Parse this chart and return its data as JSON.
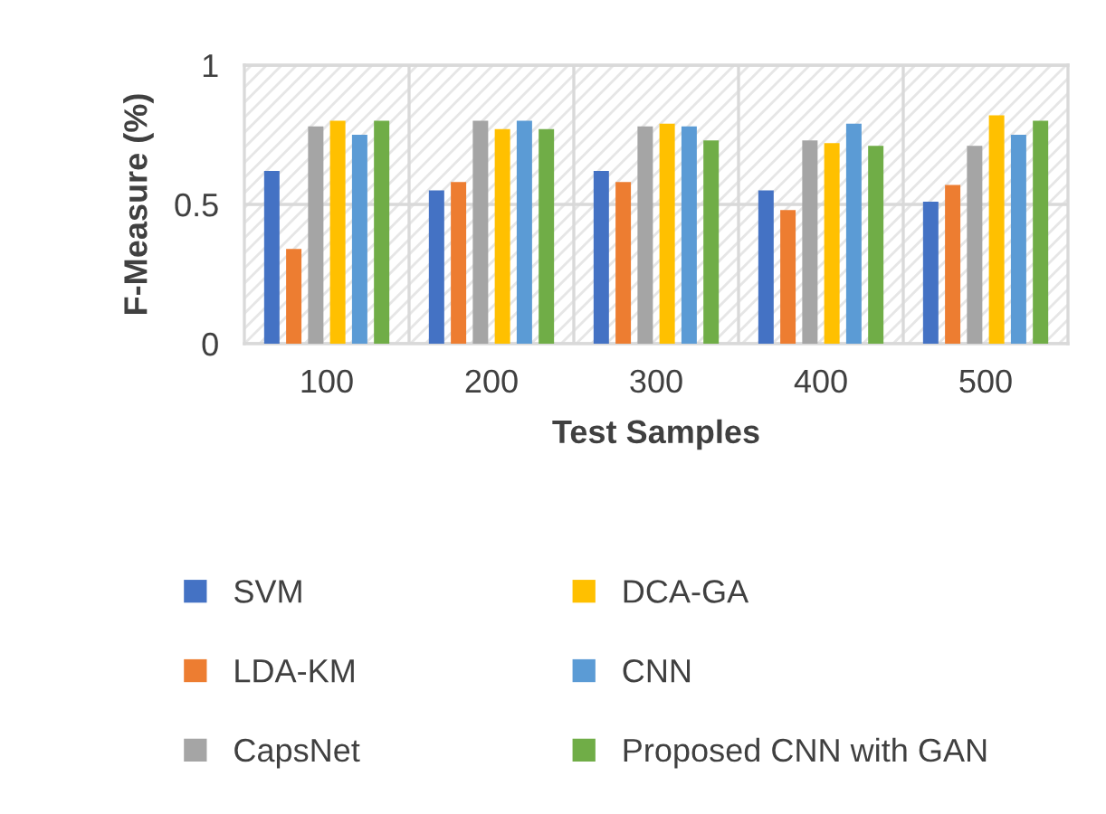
{
  "chart_data": {
    "type": "bar",
    "xlabel": "Test Samples",
    "ylabel": "F-Measure (%)",
    "categories": [
      "100",
      "200",
      "300",
      "400",
      "500"
    ],
    "series": [
      {
        "name": "SVM",
        "color": "#4472c4",
        "values": [
          0.62,
          0.55,
          0.62,
          0.55,
          0.51
        ]
      },
      {
        "name": "LDA-KM",
        "color": "#ed7d31",
        "values": [
          0.34,
          0.58,
          0.58,
          0.48,
          0.57
        ]
      },
      {
        "name": "CapsNet",
        "color": "#a5a5a5",
        "values": [
          0.78,
          0.8,
          0.78,
          0.73,
          0.71
        ]
      },
      {
        "name": "DCA-GA",
        "color": "#ffc000",
        "values": [
          0.8,
          0.77,
          0.79,
          0.72,
          0.82
        ]
      },
      {
        "name": "CNN",
        "color": "#5b9bd5",
        "values": [
          0.75,
          0.8,
          0.78,
          0.79,
          0.75
        ]
      },
      {
        "name": "Proposed CNN with GAN",
        "color": "#70ad47",
        "values": [
          0.8,
          0.77,
          0.73,
          0.71,
          0.8
        ]
      }
    ],
    "ylim": [
      0,
      1
    ],
    "yticks": [
      0,
      0.5,
      1
    ],
    "grid": true,
    "legend": "bottom"
  }
}
